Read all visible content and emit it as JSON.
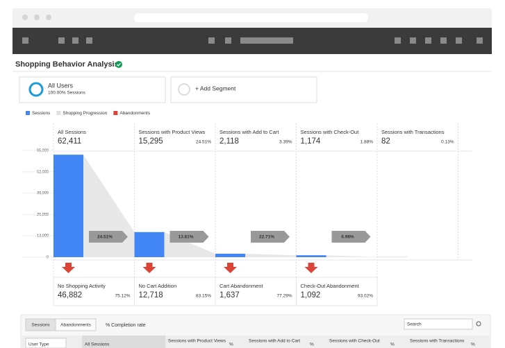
{
  "header": {
    "title": "Shopping Behavior Analysis"
  },
  "segments": {
    "active_name": "All Users",
    "active_detail": "100.00% Sessions",
    "add": "+ Add Segment"
  },
  "chart_data": {
    "type": "bar",
    "categories": [
      "All Sessions",
      "Sessions with Product Views",
      "Sessions with Add to Cart",
      "Sessions with Check-Out",
      "Sessions with Transactions"
    ],
    "series": [
      {
        "name": "Sessions",
        "color": "#4285f4",
        "values": [
          62411,
          15295,
          2118,
          1174,
          82
        ],
        "value_labels": [
          "62,411",
          "15,295",
          "2,118",
          "1,174",
          "82"
        ]
      }
    ],
    "legend_extra": [
      {
        "name": "Shopping Progression",
        "color": "#e0e0e0"
      },
      {
        "name": "Abandonments",
        "color": "#db4437"
      }
    ],
    "stage_percent": [
      "24.51%",
      "3.39%",
      "1.88%",
      "0.13%"
    ],
    "progression": [
      "24.51%",
      "13.81%",
      "22.71%",
      "6.98%"
    ],
    "abandonments": [
      {
        "name": "No Shopping Activity",
        "value": 46882,
        "label": "46,882",
        "percent": "75.12%"
      },
      {
        "name": "No Cart Addition",
        "value": 12718,
        "label": "12,718",
        "percent": "83.15%"
      },
      {
        "name": "Cart Abandonment",
        "value": 1637,
        "label": "1,637",
        "percent": "77.29%"
      },
      {
        "name": "Check-Out Abandonment",
        "value": 1092,
        "label": "1,092",
        "percent": "93.02%"
      }
    ],
    "ylim": [
      0,
      65000
    ],
    "yticks": [
      0,
      {
        "value": 13000,
        "label": "13,000"
      },
      {
        "value": 26000,
        "label": "26,000"
      },
      {
        "value": 39000,
        "label": "39,000"
      },
      {
        "value": 52000,
        "label": "52,000"
      },
      {
        "value": 65000,
        "label": "65,000"
      }
    ],
    "grid": true
  },
  "table": {
    "tabs": [
      "Sessions",
      "Abandonments"
    ],
    "option": "% Completion rate",
    "search": "Search",
    "headers": [
      "User Type",
      "All Sessions",
      "Sessions with Product Views",
      "%",
      "Sessions with Add to Cart",
      "%",
      "Sessions with Check-Out",
      "%",
      "Sessions with Transactions",
      "%"
    ]
  }
}
